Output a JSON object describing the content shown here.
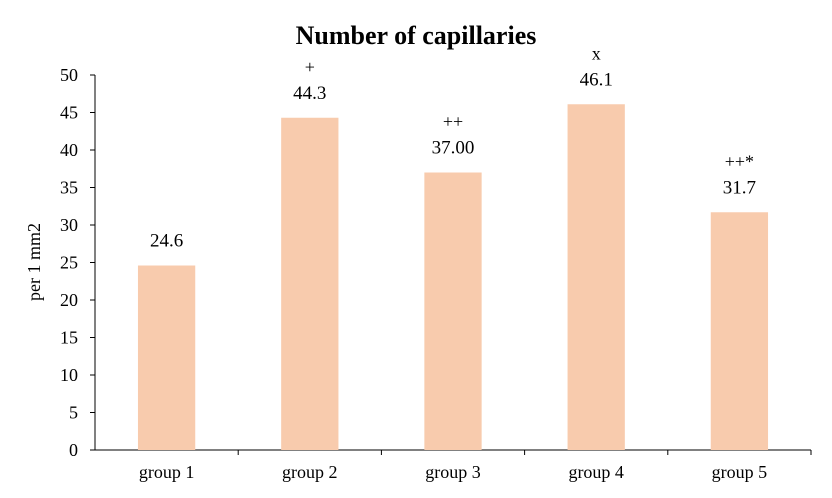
{
  "chart_data": {
    "type": "bar",
    "title": "Number of capillaries",
    "xlabel": "",
    "ylabel": "per 1 mm2",
    "ylim": [
      0,
      50
    ],
    "yticks": [
      0,
      5,
      10,
      15,
      20,
      25,
      30,
      35,
      40,
      45,
      50
    ],
    "grid": false,
    "legend": "none",
    "bar_color": "#f8cbad",
    "categories": [
      "group 1",
      "group 2",
      "group 3",
      "group 4",
      "group 5"
    ],
    "values": [
      24.6,
      44.3,
      37.0,
      46.1,
      31.7
    ],
    "data_labels": [
      "24.6",
      "44.3",
      "37.00",
      "46.1",
      "31.7"
    ],
    "annotations": [
      "",
      "+",
      "++",
      "x",
      "++*"
    ]
  }
}
